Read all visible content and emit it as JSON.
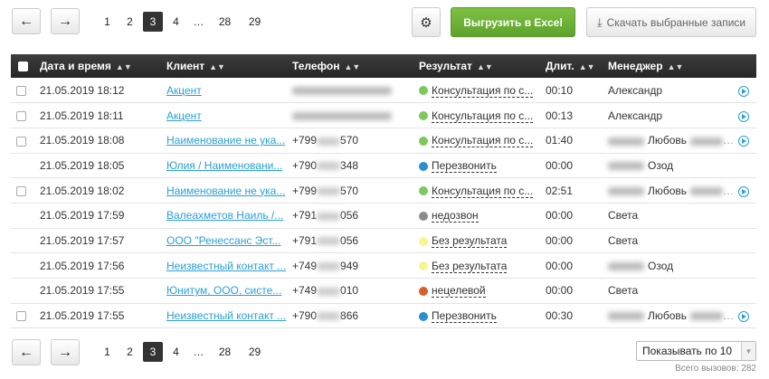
{
  "pagination": {
    "prev": "←",
    "next": "→",
    "pages": [
      "1",
      "2",
      "3",
      "4",
      "…",
      "28",
      "29"
    ],
    "active": "3"
  },
  "toolbar": {
    "settings_icon": "gear-icon",
    "excel_label": "Выгрузить в Excel",
    "download_label": "Скачать выбранные записи",
    "download_icon": "download-icon"
  },
  "table": {
    "headers": [
      "Дата и время",
      "Клиент",
      "Телефон",
      "Результат",
      "Длит.",
      "Менеджер"
    ],
    "rows": [
      {
        "checkbox": true,
        "date": "21.05.2019 18:12",
        "client": "Акцент",
        "phone_pre": "",
        "phone_suf": "",
        "phone_blurred": true,
        "result": "Консультация по с...",
        "result_color": "#7dc95e",
        "duration": "00:10",
        "manager": "Александр",
        "manager_blur": false,
        "manager_suffix_blur": false,
        "play": true
      },
      {
        "checkbox": true,
        "date": "21.05.2019 18:11",
        "client": "Акцент",
        "phone_pre": "",
        "phone_suf": "",
        "phone_blurred": true,
        "result": "Консультация по с...",
        "result_color": "#7dc95e",
        "duration": "00:13",
        "manager": "Александр",
        "manager_blur": false,
        "manager_suffix_blur": false,
        "play": true
      },
      {
        "checkbox": true,
        "date": "21.05.2019 18:08",
        "client": "Наименование не ука...",
        "phone_pre": "+799",
        "phone_suf": "570",
        "result": "Консультация по с...",
        "result_color": "#7dc95e",
        "duration": "01:40",
        "manager": "Любовь",
        "manager_blur": true,
        "manager_suffix_blur": true,
        "play": true
      },
      {
        "checkbox": false,
        "date": "21.05.2019 18:05",
        "client": "Юлия / Наименовани...",
        "phone_pre": "+790",
        "phone_suf": "348",
        "result": "Перезвонить",
        "result_color": "#2a8fd0",
        "duration": "00:00",
        "manager": "Озод",
        "manager_blur": true,
        "manager_suffix_blur": false,
        "play": false
      },
      {
        "checkbox": true,
        "date": "21.05.2019 18:02",
        "client": "Наименование не ука...",
        "phone_pre": "+799",
        "phone_suf": "570",
        "result": "Консультация по с...",
        "result_color": "#7dc95e",
        "duration": "02:51",
        "manager": "Любовь",
        "manager_blur": true,
        "manager_suffix_blur": true,
        "play": true
      },
      {
        "checkbox": false,
        "date": "21.05.2019 17:59",
        "client": "Валеахметов Наиль /...",
        "phone_pre": "+791",
        "phone_suf": "056",
        "result": "недозвон",
        "result_color": "#8c8c8c",
        "duration": "00:00",
        "manager": "Света",
        "manager_blur": false,
        "manager_suffix_blur": false,
        "play": false
      },
      {
        "checkbox": false,
        "date": "21.05.2019 17:57",
        "client": "ООО \"Ренессанс Эст...",
        "phone_pre": "+791",
        "phone_suf": "056",
        "result": "Без результата",
        "result_color": "#f7f58f",
        "duration": "00:00",
        "manager": "Света",
        "manager_blur": false,
        "manager_suffix_blur": false,
        "play": false
      },
      {
        "checkbox": false,
        "date": "21.05.2019 17:56",
        "client": "Неизвестный контакт ...",
        "phone_pre": "+749",
        "phone_suf": "949",
        "result": "Без результата",
        "result_color": "#f7f58f",
        "duration": "00:00",
        "manager": "Озод",
        "manager_blur": true,
        "manager_suffix_blur": false,
        "play": false
      },
      {
        "checkbox": false,
        "date": "21.05.2019 17:55",
        "client": "Юнитум, ООО, систе...",
        "phone_pre": "+749",
        "phone_suf": "010",
        "result": "нецелевой",
        "result_color": "#d9602a",
        "duration": "00:00",
        "manager": "Света",
        "manager_blur": false,
        "manager_suffix_blur": false,
        "play": false
      },
      {
        "checkbox": true,
        "date": "21.05.2019 17:55",
        "client": "Неизвестный контакт ...",
        "phone_pre": "+790",
        "phone_suf": "866",
        "result": "Перезвонить",
        "result_color": "#2a8fd0",
        "duration": "00:30",
        "manager": "Любовь",
        "manager_blur": true,
        "manager_suffix_blur": true,
        "play": true
      }
    ]
  },
  "footer": {
    "page_size_label": "Показывать по 10",
    "total": "Всего вызовов: 282"
  }
}
